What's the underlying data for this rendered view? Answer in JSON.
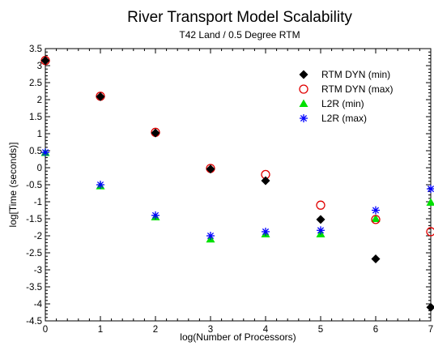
{
  "chart_data": {
    "type": "scatter",
    "title": "River Transport Model Scalability",
    "subtitle": "T42 Land / 0.5 Degree RTM",
    "xlabel": "log(Number of Processors)",
    "ylabel": "log[Time (seconds)]",
    "xlim": [
      0,
      7
    ],
    "ylim": [
      -4.5,
      3.5
    ],
    "xticks": [
      "0",
      "1",
      "2",
      "3",
      "4",
      "5",
      "6",
      "7"
    ],
    "yticks": [
      "3.5",
      "3",
      "2.5",
      "2",
      "1.5",
      "1",
      "0.5",
      "0",
      "-0.5",
      "-1",
      "-1.5",
      "-2",
      "-2.5",
      "-3",
      "-3.5",
      "-4",
      "-4.5"
    ],
    "grid": false,
    "legend_position": "top-right",
    "series": [
      {
        "name": "RTM DYN (min)",
        "marker": "diamond",
        "color": "#000000",
        "x": [
          0,
          1,
          2,
          3,
          4,
          5,
          6,
          7
        ],
        "y": [
          3.15,
          2.09,
          1.02,
          -0.04,
          -0.38,
          -1.52,
          -2.68,
          -4.1
        ]
      },
      {
        "name": "RTM DYN (max)",
        "marker": "circle-open",
        "color": "#e00000",
        "x": [
          0,
          1,
          2,
          3,
          4,
          5,
          6,
          7
        ],
        "y": [
          3.15,
          2.1,
          1.04,
          -0.02,
          -0.2,
          -1.1,
          -1.52,
          -1.88
        ]
      },
      {
        "name": "L2R (min)",
        "marker": "triangle",
        "color": "#00e000",
        "x": [
          0,
          1,
          2,
          3,
          4,
          5,
          6,
          7
        ],
        "y": [
          0.44,
          -0.54,
          -1.45,
          -2.1,
          -1.95,
          -1.95,
          -1.5,
          -1.02
        ]
      },
      {
        "name": "L2R (max)",
        "marker": "asterisk",
        "color": "#0000ff",
        "x": [
          0,
          1,
          2,
          3,
          4,
          5,
          6,
          7
        ],
        "y": [
          0.45,
          -0.5,
          -1.4,
          -2.0,
          -1.88,
          -1.84,
          -1.25,
          -0.62
        ]
      }
    ]
  }
}
